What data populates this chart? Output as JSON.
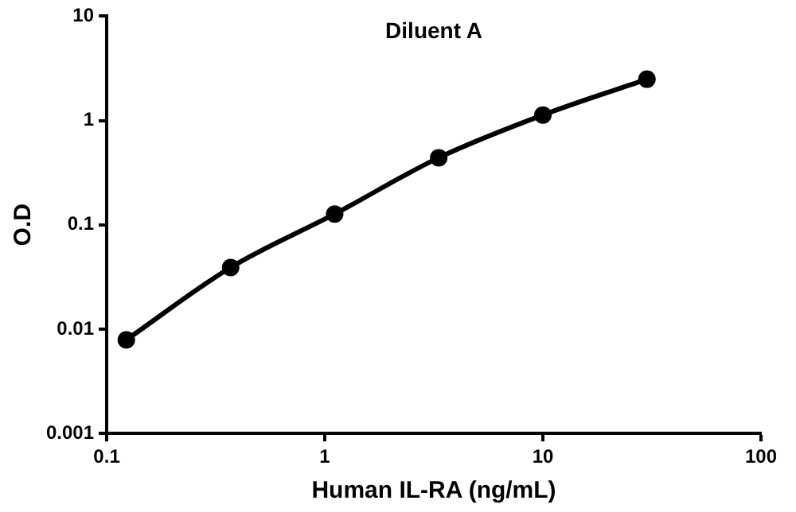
{
  "chart_data": {
    "type": "line",
    "title": "Diluent A",
    "xlabel": "Human IL-RA (ng/mL)",
    "ylabel": "O.D",
    "log": "xy",
    "xlim": [
      0.1,
      100
    ],
    "xticks": [
      0.1,
      1,
      10,
      100
    ],
    "ylim": [
      0.001,
      10
    ],
    "yticks": [
      0.001,
      0.01,
      0.1,
      1,
      10
    ],
    "x": [
      0.123,
      0.37,
      1.11,
      3.33,
      10,
      30
    ],
    "series": [
      {
        "color": "#000000",
        "values": [
          0.0079,
          0.039,
          0.127,
          0.44,
          1.13,
          2.49
        ]
      }
    ],
    "grid": false,
    "legend": false,
    "marker": "circle",
    "line_style": "solid"
  }
}
